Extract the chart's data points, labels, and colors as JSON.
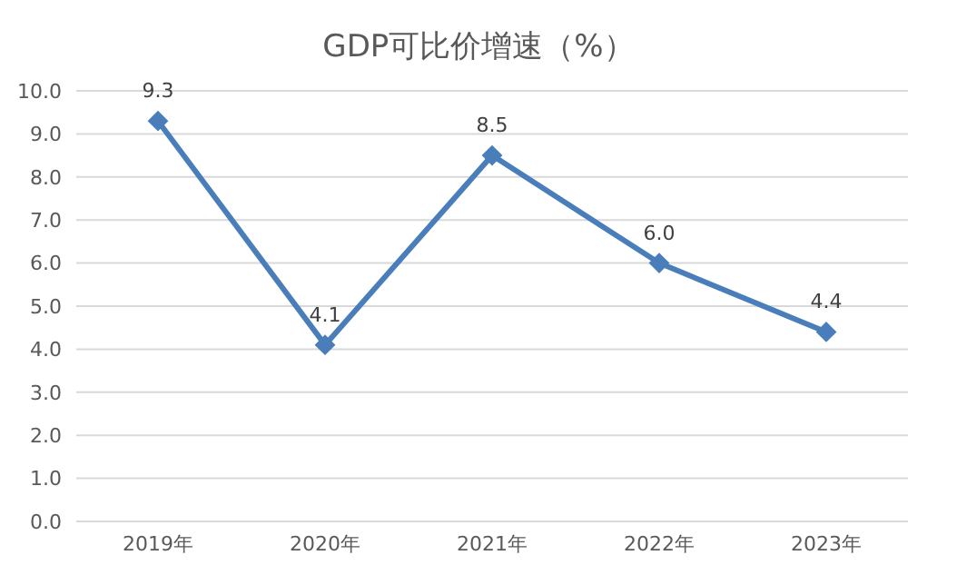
{
  "chart_data": {
    "type": "line",
    "title": "GDP可比价增速（%）",
    "categories": [
      "2019年",
      "2020年",
      "2021年",
      "2022年",
      "2023年"
    ],
    "series": [
      {
        "color": "#4a7ebb",
        "values": [
          9.3,
          4.1,
          8.5,
          6.0,
          4.4
        ]
      }
    ],
    "ylim": [
      0,
      10
    ],
    "yticks": [
      {
        "value": 0,
        "label": "0.0"
      },
      {
        "value": 1,
        "label": "1.0"
      },
      {
        "value": 2,
        "label": "2.0"
      },
      {
        "value": 3,
        "label": "3.0"
      },
      {
        "value": 4,
        "label": "4.0"
      },
      {
        "value": 5,
        "label": "5.0"
      },
      {
        "value": 6,
        "label": "6.0"
      },
      {
        "value": 7,
        "label": "7.0"
      },
      {
        "value": 8,
        "label": "8.0"
      },
      {
        "value": 9,
        "label": "9.0"
      },
      {
        "value": 10,
        "label": "10.0"
      }
    ],
    "grid": "y",
    "marker": "diamond",
    "line_style": "solid",
    "value_labels": [
      "9.3",
      "4.1",
      "8.5",
      "6.0",
      "4.4"
    ]
  }
}
